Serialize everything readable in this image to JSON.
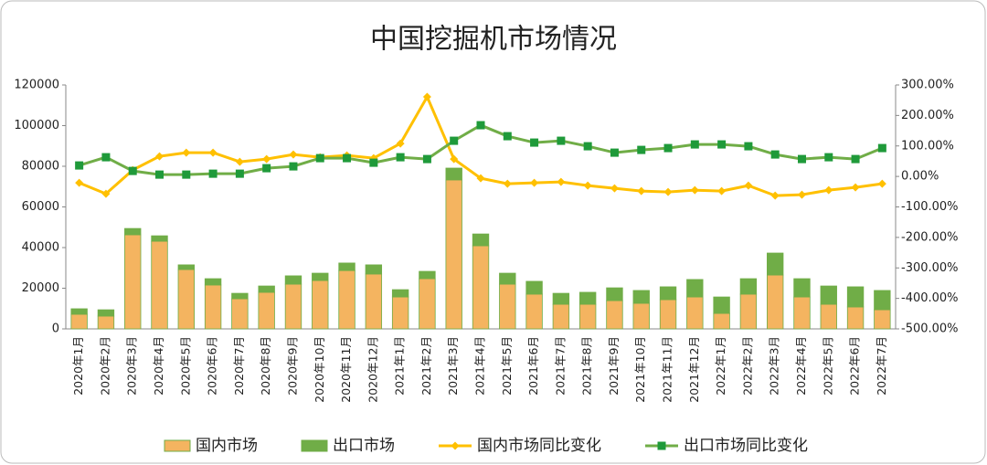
{
  "chart_data": {
    "type": "bar-line",
    "title": "中国挖掘机市场情况",
    "categories": [
      "2020年1月",
      "2020年2月",
      "2020年3月",
      "2020年4月",
      "2020年5月",
      "2020年6月",
      "2020年7月",
      "2020年8月",
      "2020年9月",
      "2020年10月",
      "2020年11月",
      "2020年12月",
      "2021年1月",
      "2021年2月",
      "2021年3月",
      "2021年4月",
      "2021年5月",
      "2021年6月",
      "2021年7月",
      "2021年8月",
      "2021年9月",
      "2021年10月",
      "2021年11月",
      "2021年12月",
      "2022年1月",
      "2022年2月",
      "2022年3月",
      "2022年4月",
      "2022年5月",
      "2022年6月",
      "2022年7月"
    ],
    "series": [
      {
        "name": "国内市场",
        "type": "bar",
        "color": "#f4b460",
        "values": [
          7200,
          6300,
          46300,
          43100,
          29200,
          21600,
          14800,
          18000,
          22000,
          23800,
          28700,
          27000,
          15700,
          24700,
          73300,
          40900,
          22000,
          17100,
          12100,
          12100,
          13900,
          12600,
          14400,
          15700,
          7600,
          17100,
          26500,
          15700,
          12100,
          10800,
          9400
        ]
      },
      {
        "name": "出口市场",
        "type": "bar",
        "color": "#70ad47",
        "values": [
          2700,
          3100,
          3100,
          2700,
          2300,
          3100,
          2700,
          3100,
          4100,
          3600,
          3700,
          4500,
          3600,
          3600,
          5800,
          5800,
          5400,
          6300,
          5400,
          5900,
          6300,
          6300,
          6300,
          8600,
          8100,
          7600,
          10800,
          9000,
          9000,
          9900,
          9500
        ]
      },
      {
        "name": "国内市场同比变化",
        "type": "line",
        "axis": "y2",
        "marker": "diamond",
        "color": "#ffc000",
        "values": [
          -21,
          -57,
          21,
          66,
          78,
          78,
          48,
          57,
          72,
          63,
          69,
          60,
          108,
          261,
          57,
          -6,
          -24,
          -21,
          -18,
          -30,
          -39,
          -48,
          -51,
          -45,
          -48,
          -30,
          -63,
          -60,
          -45,
          -36,
          -24
        ]
      },
      {
        "name": "出口市场同比变化",
        "type": "line",
        "axis": "y2",
        "marker": "square",
        "color": "#70ad47",
        "marker_color": "#1f9a3a",
        "values": [
          36,
          63,
          18,
          6,
          6,
          9,
          9,
          27,
          33,
          60,
          60,
          45,
          63,
          57,
          117,
          168,
          132,
          111,
          117,
          99,
          78,
          87,
          93,
          105,
          105,
          99,
          72,
          57,
          63,
          57,
          93
        ]
      }
    ],
    "ylim": [
      0,
      120000
    ],
    "yticks": [
      0,
      20000,
      40000,
      60000,
      80000,
      100000,
      120000
    ],
    "y2lim": [
      -500,
      300
    ],
    "y2ticks": [
      {
        "value": 300,
        "label": "300.00%"
      },
      {
        "value": 200,
        "label": "200.00%"
      },
      {
        "value": 100,
        "label": "100.00%"
      },
      {
        "value": 0,
        "label": "0.00%"
      },
      {
        "value": -100,
        "label": "-100.00%"
      },
      {
        "value": -200,
        "label": "-200.00%"
      },
      {
        "value": -300,
        "label": "-300.00%"
      },
      {
        "value": -400,
        "label": "-400.00%"
      },
      {
        "value": -500,
        "label": "-500.00%"
      }
    ],
    "legend": "bottom"
  }
}
